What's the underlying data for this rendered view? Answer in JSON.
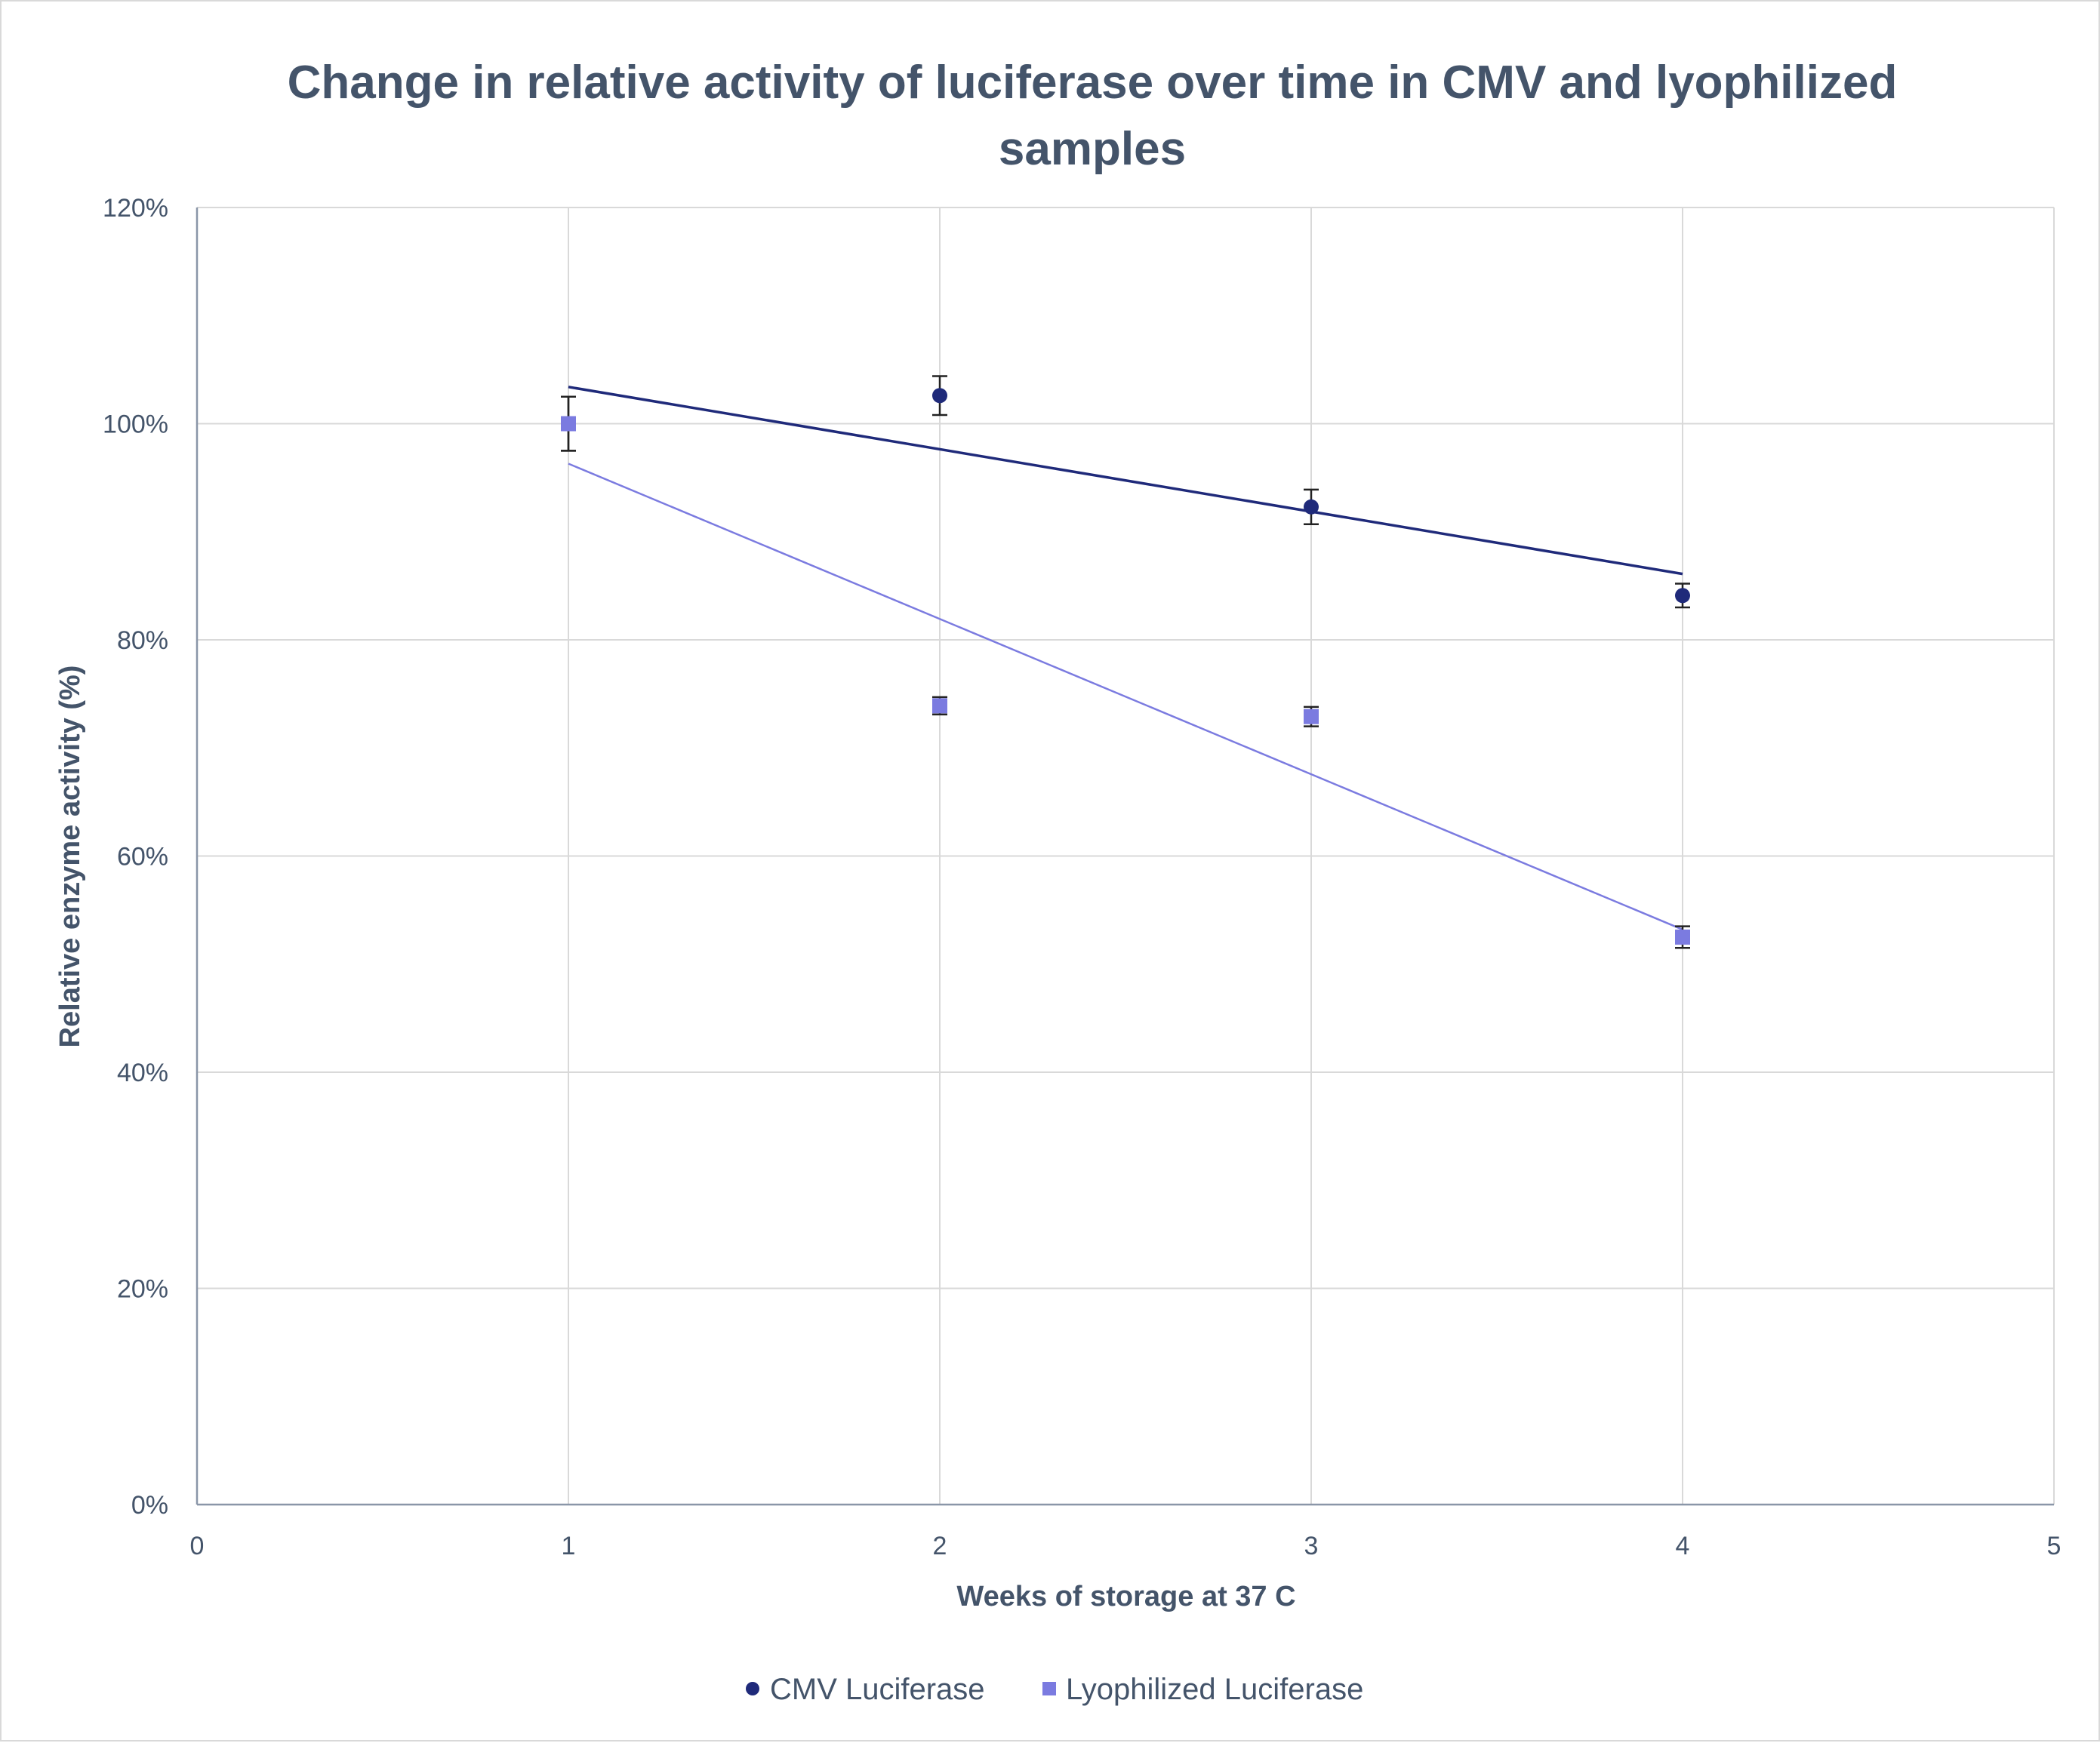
{
  "chart_data": {
    "type": "scatter",
    "title_lines": [
      "Change in relative activity of luciferase over time in CMV and lyophilized",
      "samples"
    ],
    "xlabel": "Weeks of storage at 37 C",
    "ylabel": "Relative enzyme activity (%)",
    "xlim": [
      0,
      5
    ],
    "ylim": [
      0,
      1.2
    ],
    "x_ticks": [
      0,
      1,
      2,
      3,
      4,
      5
    ],
    "x_tick_labels": [
      "0",
      "1",
      "2",
      "3",
      "4",
      "5"
    ],
    "y_ticks": [
      0,
      0.2,
      0.4,
      0.6,
      0.8,
      1.0,
      1.2
    ],
    "y_tick_labels": [
      "0%",
      "20%",
      "40%",
      "60%",
      "80%",
      "100%",
      "120%"
    ],
    "grid": true,
    "legend_position": "bottom",
    "series": [
      {
        "name": "CMV Luciferase",
        "marker": "circle",
        "color": "#1f2a7a",
        "x": [
          1,
          2,
          3,
          4
        ],
        "y": [
          1.0,
          1.026,
          0.923,
          0.841
        ],
        "error": [
          0.025,
          0.018,
          0.016,
          0.011
        ],
        "trendline": {
          "type": "linear",
          "x": [
            1,
            4
          ],
          "y": [
            1.034,
            0.861
          ]
        }
      },
      {
        "name": "Lyophilized Luciferase",
        "marker": "square",
        "color": "#7b7be0",
        "x": [
          1,
          2,
          3,
          4
        ],
        "y": [
          1.0,
          0.739,
          0.729,
          0.525
        ],
        "error": [
          0.025,
          0.008,
          0.009,
          0.01
        ],
        "trendline": {
          "type": "linear",
          "x": [
            1,
            4
          ],
          "y": [
            0.963,
            0.532
          ]
        }
      }
    ]
  }
}
